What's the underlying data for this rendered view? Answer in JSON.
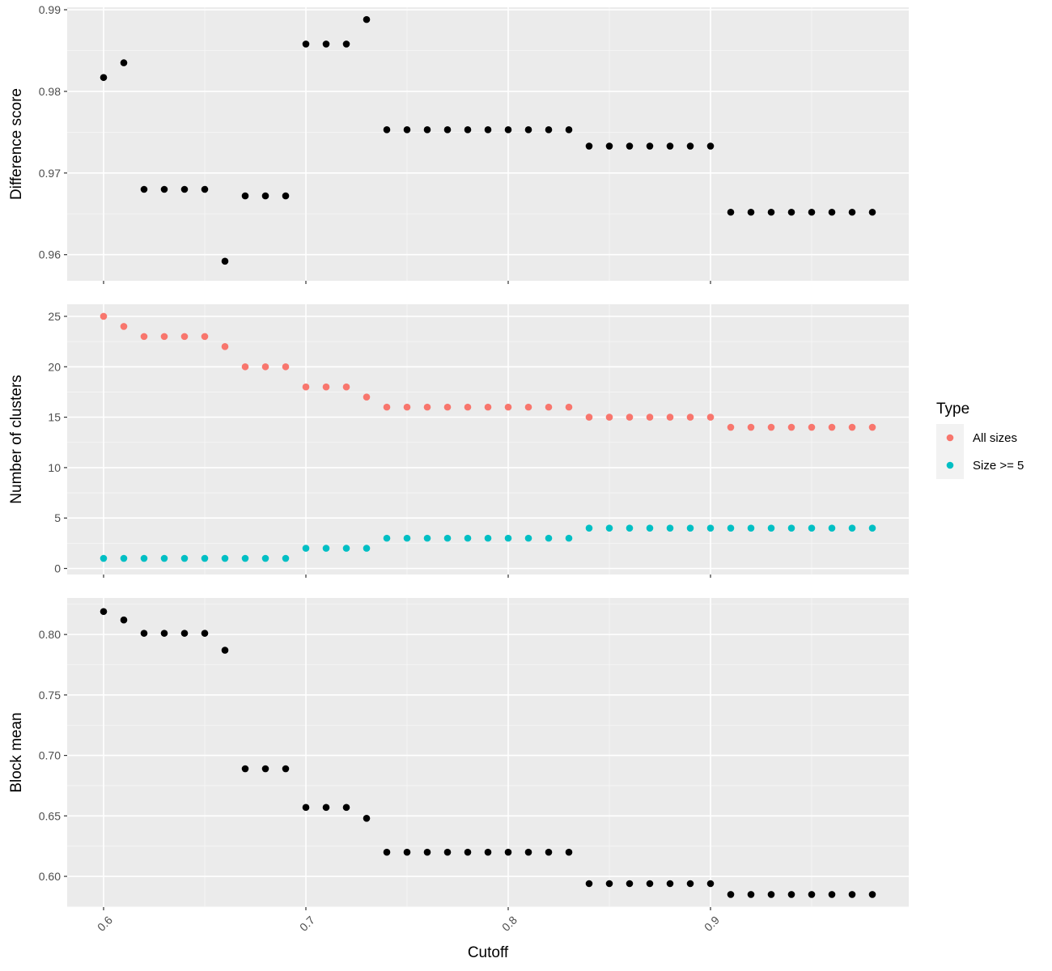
{
  "chart_data": {
    "type": "scatter",
    "xlabel": "Cutoff",
    "x_ticks": [
      "0.6",
      "0.7",
      "0.8",
      "0.9"
    ],
    "x_tick_values": [
      0.6,
      0.7,
      0.8,
      0.9
    ],
    "xlim": [
      0.582,
      0.998
    ],
    "grid": true,
    "legend": {
      "title": "Type",
      "placement": "right",
      "entries": [
        {
          "label": "All sizes",
          "color": "#F8766D"
        },
        {
          "label": "Size >= 5",
          "color": "#00BFC4"
        }
      ]
    },
    "panels": [
      {
        "ylabel": "Difference score",
        "ylim": [
          0.9568,
          0.9903
        ],
        "y_ticks": [
          "0.96",
          "0.97",
          "0.98",
          "0.99"
        ],
        "y_tick_values": [
          0.96,
          0.97,
          0.98,
          0.99
        ],
        "series": [
          {
            "color": "#000000",
            "x": [
              0.6,
              0.61,
              0.62,
              0.63,
              0.64,
              0.65,
              0.66,
              0.67,
              0.68,
              0.69,
              0.7,
              0.71,
              0.72,
              0.73,
              0.74,
              0.75,
              0.76,
              0.77,
              0.78,
              0.79,
              0.8,
              0.81,
              0.82,
              0.83,
              0.84,
              0.85,
              0.86,
              0.87,
              0.88,
              0.89,
              0.9,
              0.91,
              0.92,
              0.93,
              0.94,
              0.95,
              0.96,
              0.97,
              0.98
            ],
            "y": [
              0.9817,
              0.9835,
              0.968,
              0.968,
              0.968,
              0.968,
              0.9592,
              0.9672,
              0.9672,
              0.9672,
              0.9858,
              0.9858,
              0.9858,
              0.9888,
              0.9753,
              0.9753,
              0.9753,
              0.9753,
              0.9753,
              0.9753,
              0.9753,
              0.9753,
              0.9753,
              0.9753,
              0.9733,
              0.9733,
              0.9733,
              0.9733,
              0.9733,
              0.9733,
              0.9733,
              0.9652,
              0.9652,
              0.9652,
              0.9652,
              0.9652,
              0.9652,
              0.9652,
              0.9652
            ]
          }
        ]
      },
      {
        "ylabel": "Number of clusters",
        "ylim": [
          -0.6,
          26.2
        ],
        "y_ticks": [
          "0",
          "5",
          "10",
          "15",
          "20",
          "25"
        ],
        "y_tick_values": [
          0,
          5,
          10,
          15,
          20,
          25
        ],
        "series": [
          {
            "name": "All sizes",
            "color": "#F8766D",
            "x": [
              0.6,
              0.61,
              0.62,
              0.63,
              0.64,
              0.65,
              0.66,
              0.67,
              0.68,
              0.69,
              0.7,
              0.71,
              0.72,
              0.73,
              0.74,
              0.75,
              0.76,
              0.77,
              0.78,
              0.79,
              0.8,
              0.81,
              0.82,
              0.83,
              0.84,
              0.85,
              0.86,
              0.87,
              0.88,
              0.89,
              0.9,
              0.91,
              0.92,
              0.93,
              0.94,
              0.95,
              0.96,
              0.97,
              0.98
            ],
            "y": [
              25,
              24,
              23,
              23,
              23,
              23,
              22,
              20,
              20,
              20,
              18,
              18,
              18,
              17,
              16,
              16,
              16,
              16,
              16,
              16,
              16,
              16,
              16,
              16,
              15,
              15,
              15,
              15,
              15,
              15,
              15,
              14,
              14,
              14,
              14,
              14,
              14,
              14,
              14
            ]
          },
          {
            "name": "Size >= 5",
            "color": "#00BFC4",
            "x": [
              0.6,
              0.61,
              0.62,
              0.63,
              0.64,
              0.65,
              0.66,
              0.67,
              0.68,
              0.69,
              0.7,
              0.71,
              0.72,
              0.73,
              0.74,
              0.75,
              0.76,
              0.77,
              0.78,
              0.79,
              0.8,
              0.81,
              0.82,
              0.83,
              0.84,
              0.85,
              0.86,
              0.87,
              0.88,
              0.89,
              0.9,
              0.91,
              0.92,
              0.93,
              0.94,
              0.95,
              0.96,
              0.97,
              0.98
            ],
            "y": [
              1,
              1,
              1,
              1,
              1,
              1,
              1,
              1,
              1,
              1,
              2,
              2,
              2,
              2,
              3,
              3,
              3,
              3,
              3,
              3,
              3,
              3,
              3,
              3,
              4,
              4,
              4,
              4,
              4,
              4,
              4,
              4,
              4,
              4,
              4,
              4,
              4,
              4,
              4
            ]
          }
        ]
      },
      {
        "ylabel": "Block mean",
        "ylim": [
          0.5746,
          0.8302
        ],
        "y_ticks": [
          "0.60",
          "0.65",
          "0.70",
          "0.75",
          "0.80"
        ],
        "y_tick_values": [
          0.6,
          0.65,
          0.7,
          0.75,
          0.8
        ],
        "series": [
          {
            "color": "#000000",
            "x": [
              0.6,
              0.61,
              0.62,
              0.63,
              0.64,
              0.65,
              0.66,
              0.67,
              0.68,
              0.69,
              0.7,
              0.71,
              0.72,
              0.73,
              0.74,
              0.75,
              0.76,
              0.77,
              0.78,
              0.79,
              0.8,
              0.81,
              0.82,
              0.83,
              0.84,
              0.85,
              0.86,
              0.87,
              0.88,
              0.89,
              0.9,
              0.91,
              0.92,
              0.93,
              0.94,
              0.95,
              0.96,
              0.97,
              0.98
            ],
            "y": [
              0.819,
              0.812,
              0.801,
              0.801,
              0.801,
              0.801,
              0.787,
              0.689,
              0.689,
              0.689,
              0.657,
              0.657,
              0.657,
              0.648,
              0.62,
              0.62,
              0.62,
              0.62,
              0.62,
              0.62,
              0.62,
              0.62,
              0.62,
              0.62,
              0.594,
              0.594,
              0.594,
              0.594,
              0.594,
              0.594,
              0.594,
              0.585,
              0.585,
              0.585,
              0.585,
              0.585,
              0.585,
              0.585,
              0.585
            ]
          }
        ]
      }
    ]
  }
}
